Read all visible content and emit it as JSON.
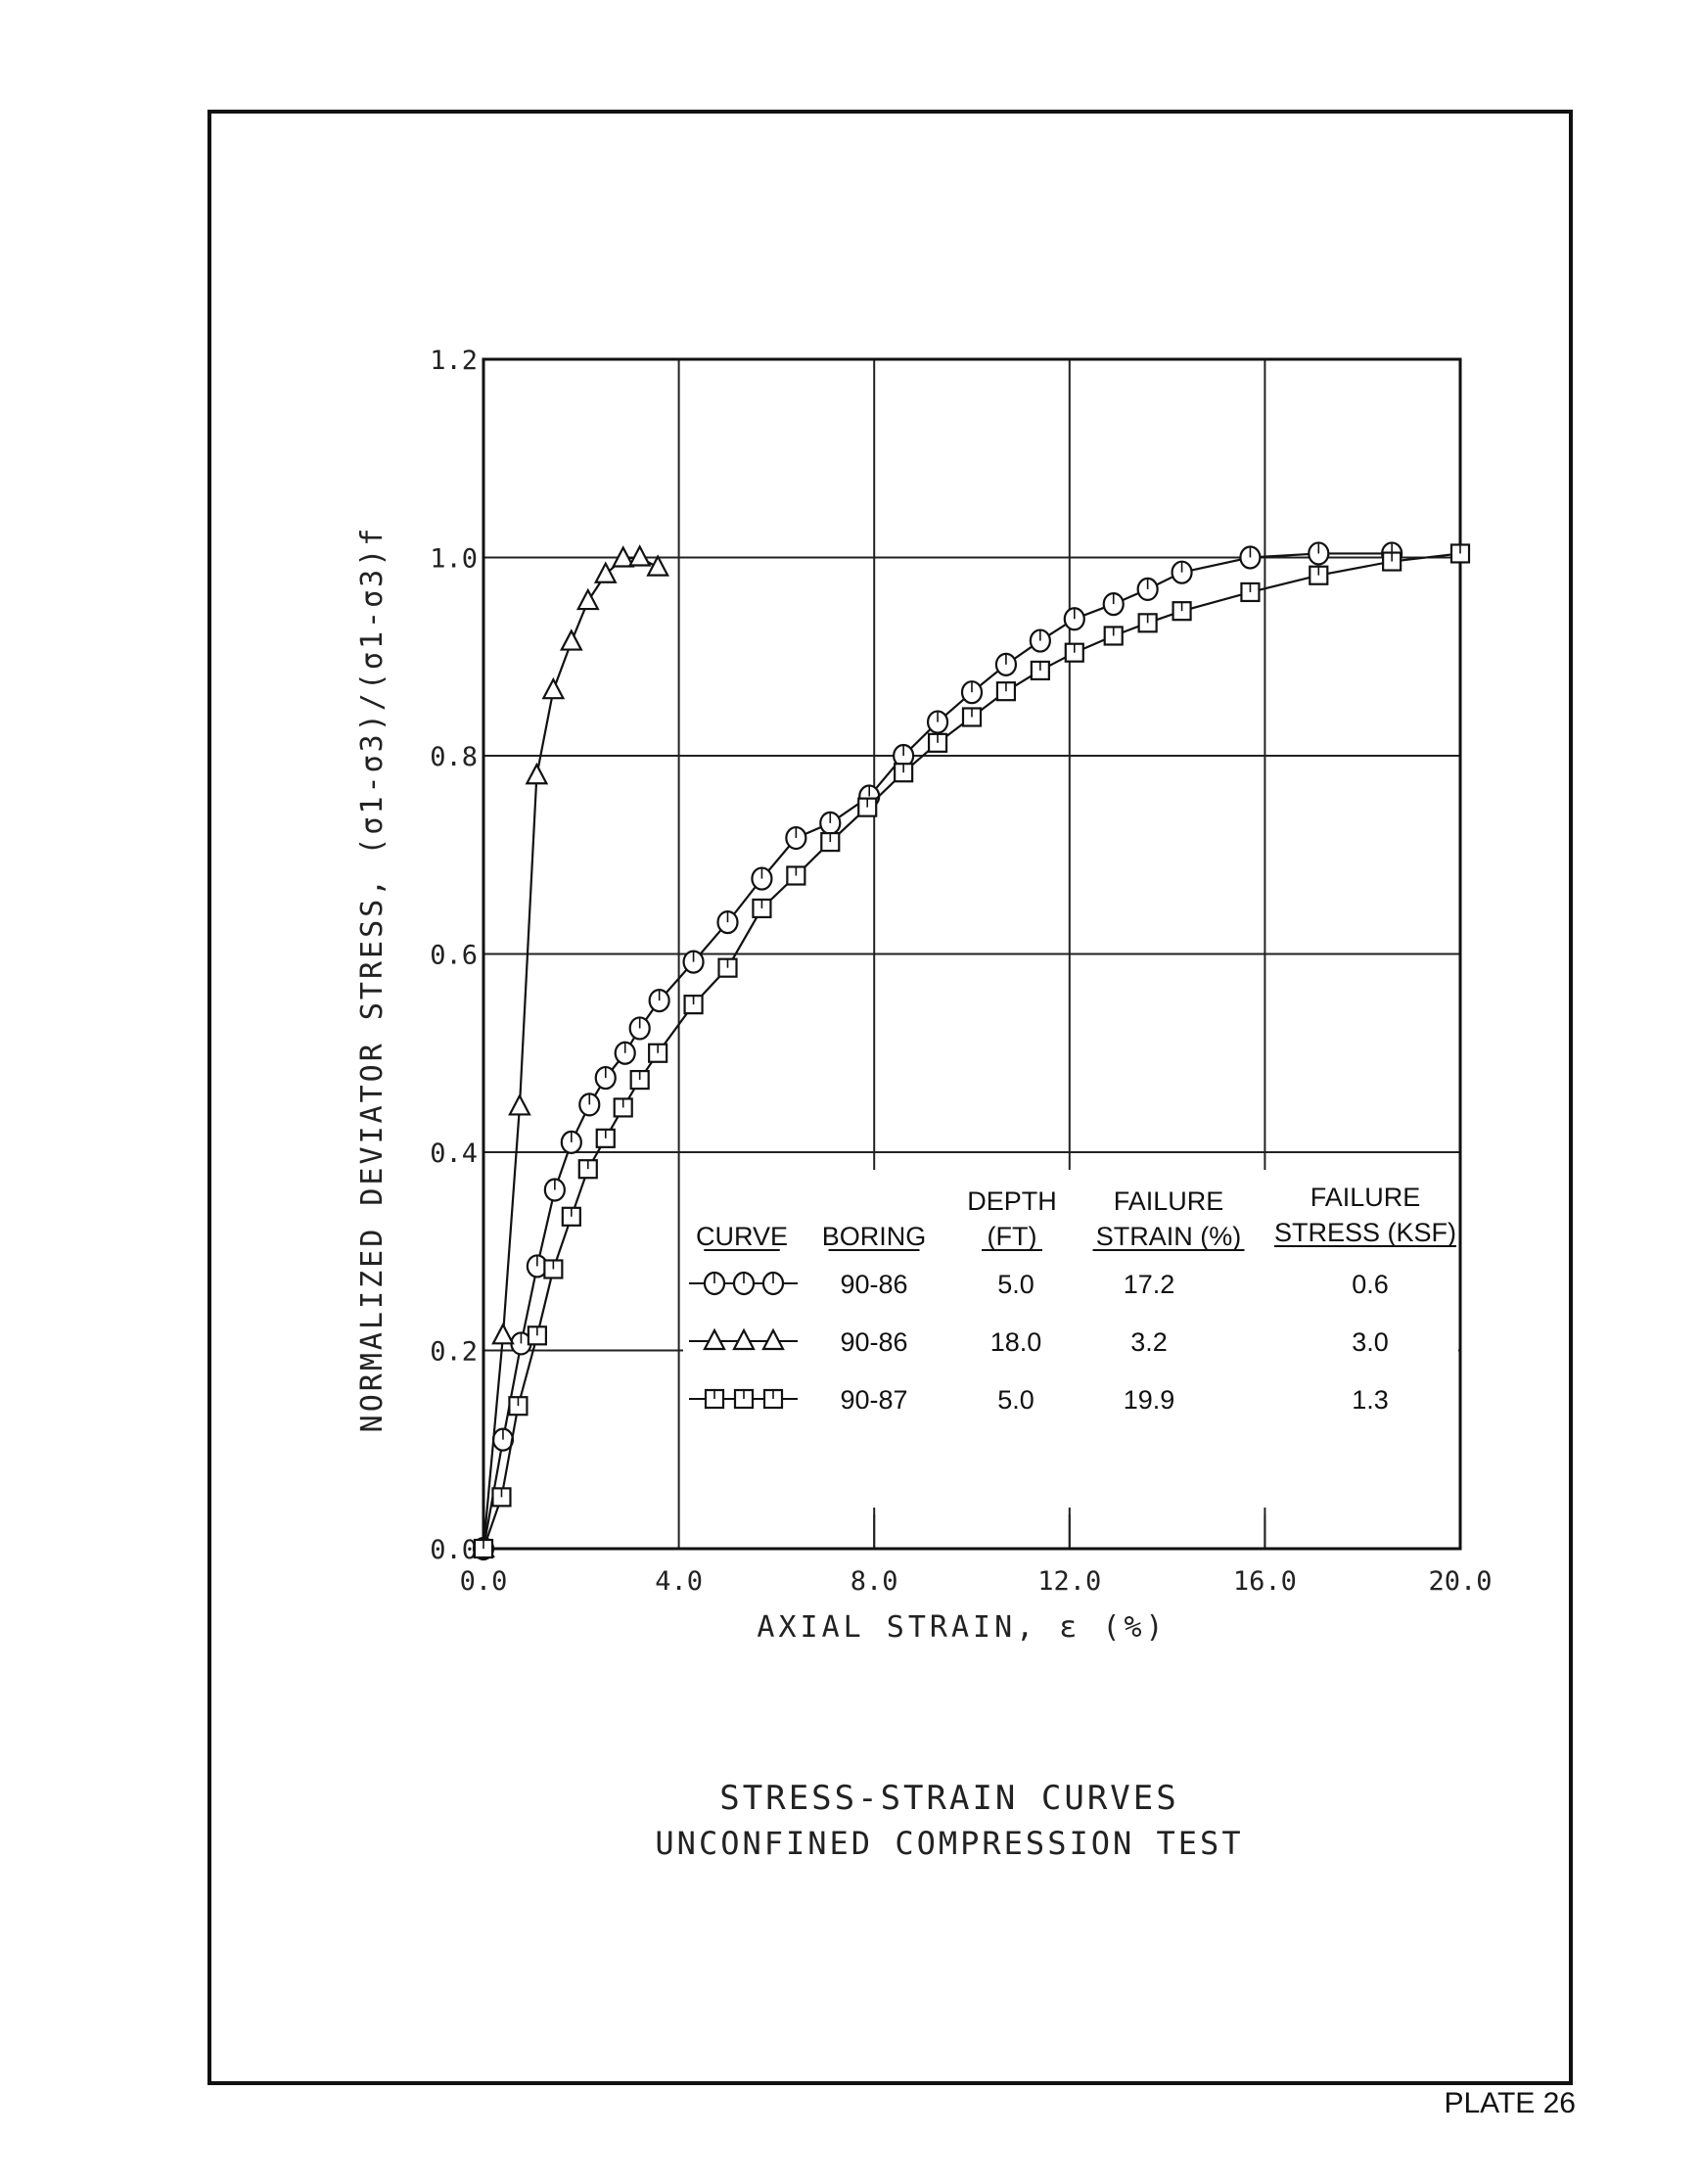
{
  "title": "STRESS-STRAIN CURVES",
  "subtitle": "UNCONFINED COMPRESSION TEST",
  "plate": "PLATE 26",
  "chart_data": {
    "type": "line",
    "xlabel": "AXIAL STRAIN, ε (%)",
    "ylabel": "NORMALIZED DEVIATOR STRESS, (σ1-σ3)/(σ1-σ3)f",
    "xlim": [
      0,
      20
    ],
    "ylim": [
      0,
      1.2
    ],
    "xticks": [
      "0.0",
      "4.0",
      "8.0",
      "12.0",
      "16.0",
      "20.0"
    ],
    "yticks": [
      "0.0",
      "0.2",
      "0.4",
      "0.6",
      "0.8",
      "1.0",
      "1.2"
    ],
    "grid": true,
    "legend_placement": "bottom-right",
    "series": [
      {
        "marker": "circle",
        "boring": "90-86",
        "depth": "5.0",
        "failure_strain": "17.2",
        "failure_stress": "0.6",
        "x": [
          0,
          0.4,
          0.77,
          1.1,
          1.46,
          1.8,
          2.17,
          2.5,
          2.9,
          3.2,
          3.6,
          4.3,
          5.0,
          5.7,
          6.4,
          7.1,
          7.9,
          8.6,
          9.3,
          10.0,
          10.7,
          11.4,
          12.1,
          12.9,
          13.6,
          14.3,
          15.7,
          17.1,
          18.6
        ],
        "y": [
          0,
          0.11,
          0.207,
          0.285,
          0.362,
          0.41,
          0.448,
          0.475,
          0.5,
          0.525,
          0.553,
          0.592,
          0.632,
          0.676,
          0.717,
          0.732,
          0.759,
          0.8,
          0.834,
          0.864,
          0.892,
          0.916,
          0.938,
          0.953,
          0.968,
          0.985,
          1.0,
          1.004,
          1.004
        ]
      },
      {
        "marker": "triangle",
        "boring": "90-86",
        "depth": "18.0",
        "failure_strain": "3.2",
        "failure_stress": "3.0",
        "x": [
          0,
          0.4,
          0.74,
          1.09,
          1.43,
          1.8,
          2.14,
          2.5,
          2.86,
          3.2,
          3.57
        ],
        "y": [
          0,
          0.215,
          0.446,
          0.78,
          0.866,
          0.915,
          0.956,
          0.983,
          0.999,
          1.0,
          0.99
        ]
      },
      {
        "marker": "square",
        "boring": "90-87",
        "depth": "5.0",
        "failure_strain": "19.9",
        "failure_stress": "1.3",
        "x": [
          0,
          0.37,
          0.71,
          1.1,
          1.43,
          1.8,
          2.14,
          2.5,
          2.86,
          3.2,
          3.57,
          4.3,
          5.0,
          5.7,
          6.4,
          7.1,
          7.86,
          8.6,
          9.3,
          10.0,
          10.7,
          11.4,
          12.1,
          12.9,
          13.6,
          14.3,
          15.7,
          17.1,
          18.6,
          20.0
        ],
        "y": [
          0,
          0.052,
          0.144,
          0.215,
          0.282,
          0.335,
          0.383,
          0.414,
          0.445,
          0.473,
          0.5,
          0.549,
          0.586,
          0.646,
          0.679,
          0.713,
          0.748,
          0.783,
          0.813,
          0.839,
          0.865,
          0.886,
          0.904,
          0.921,
          0.934,
          0.946,
          0.965,
          0.982,
          0.996,
          1.004
        ]
      }
    ],
    "legend_headers": {
      "curve": "CURVE",
      "boring": "BORING",
      "depth_1": "DEPTH",
      "depth_2": "(FT)",
      "strain_1": "FAILURE",
      "strain_2": "STRAIN (%)",
      "stress_1": "FAILURE",
      "stress_2": "STRESS (KSF)"
    }
  }
}
